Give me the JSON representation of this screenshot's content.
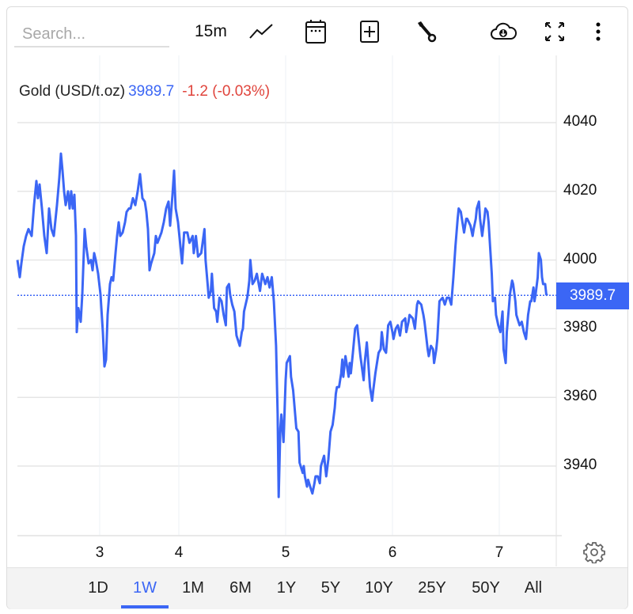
{
  "toolbar": {
    "search_placeholder": "Search...",
    "interval": "15m",
    "icons": [
      "line-chart-icon",
      "calendar-icon",
      "add-indicator-icon",
      "wrench-icon",
      "cloud-download-icon",
      "fullscreen-icon",
      "more-vertical-icon"
    ]
  },
  "legend": {
    "symbol": "Gold (USD/t.oz)",
    "price": "3989.7",
    "change": "-1.2 (-0.03%)"
  },
  "colors": {
    "line": "#3b66f5",
    "accent": "#3b66f5",
    "negative": "#e0443c"
  },
  "current_price_label": "3989.7",
  "ranges": {
    "items": [
      "1D",
      "1W",
      "1M",
      "6M",
      "1Y",
      "5Y",
      "10Y",
      "25Y",
      "50Y",
      "All"
    ],
    "selected": "1W"
  },
  "chart_data": {
    "type": "line",
    "y_ticks": [
      "4040",
      "4020",
      "4000",
      "3980",
      "3960",
      "3940"
    ],
    "x_ticks": [
      "3",
      "4",
      "5",
      "6",
      "7"
    ],
    "ylim": [
      3922,
      4055
    ],
    "grid": true,
    "last_value": 3989.7,
    "series": [
      {
        "points": [
          [
            1.96,
            4000
          ],
          [
            1.99,
            3995
          ],
          [
            2.01,
            3999
          ],
          [
            2.04,
            4004
          ],
          [
            2.07,
            4007
          ],
          [
            2.1,
            4009
          ],
          [
            2.14,
            4007
          ],
          [
            2.17,
            4016
          ],
          [
            2.2,
            4023
          ],
          [
            2.22,
            4018
          ],
          [
            2.24,
            4022
          ],
          [
            2.27,
            4015
          ],
          [
            2.3,
            4007
          ],
          [
            2.33,
            4002
          ],
          [
            2.36,
            4015
          ],
          [
            2.39,
            4009
          ],
          [
            2.42,
            4007
          ],
          [
            2.46,
            4016
          ],
          [
            2.49,
            4024
          ],
          [
            2.51,
            4031
          ],
          [
            2.53,
            4026
          ],
          [
            2.55,
            4020
          ],
          [
            2.57,
            4016
          ],
          [
            2.6,
            4020
          ],
          [
            2.62,
            4015
          ],
          [
            2.64,
            4020
          ],
          [
            2.66,
            4015
          ],
          [
            2.68,
            4019
          ],
          [
            2.7,
            4007
          ],
          [
            2.71,
            3979
          ],
          [
            2.73,
            3986
          ],
          [
            2.76,
            3982
          ],
          [
            2.78,
            3990
          ],
          [
            2.81,
            4009
          ],
          [
            2.83,
            4004
          ],
          [
            2.86,
            3999
          ],
          [
            2.89,
            4000
          ],
          [
            2.91,
            3997
          ],
          [
            2.93,
            4002
          ],
          [
            2.95,
            4000
          ],
          [
            2.98,
            3996
          ],
          [
            3.01,
            3990
          ],
          [
            3.04,
            3979
          ],
          [
            3.06,
            3969
          ],
          [
            3.08,
            3971
          ],
          [
            3.1,
            3984
          ],
          [
            3.13,
            3993
          ],
          [
            3.15,
            3995
          ],
          [
            3.17,
            3994
          ],
          [
            3.2,
            4002
          ],
          [
            3.22,
            4007
          ],
          [
            3.24,
            4011
          ],
          [
            3.26,
            4007
          ],
          [
            3.29,
            4008
          ],
          [
            3.32,
            4011
          ],
          [
            3.34,
            4014
          ],
          [
            3.37,
            4015
          ],
          [
            3.39,
            4015
          ],
          [
            3.42,
            4018
          ],
          [
            3.45,
            4016
          ],
          [
            3.48,
            4020
          ],
          [
            3.51,
            4025
          ],
          [
            3.54,
            4018
          ],
          [
            3.57,
            4017
          ],
          [
            3.59,
            4014
          ],
          [
            3.61,
            4009
          ],
          [
            3.63,
            3997
          ],
          [
            3.65,
            3999
          ],
          [
            3.69,
            4002
          ],
          [
            3.71,
            4007
          ],
          [
            3.73,
            4005
          ],
          [
            3.78,
            4008
          ],
          [
            3.81,
            4011
          ],
          [
            3.84,
            4015
          ],
          [
            3.87,
            4017
          ],
          [
            3.89,
            4010
          ],
          [
            3.92,
            4019
          ],
          [
            3.94,
            4026
          ],
          [
            3.96,
            4015
          ],
          [
            3.99,
            4011
          ],
          [
            4.015,
            4004
          ],
          [
            4.03,
            3999
          ],
          [
            4.05,
            4008
          ],
          [
            4.08,
            4008
          ],
          [
            4.1,
            4005
          ],
          [
            4.13,
            4007
          ],
          [
            4.14,
            4002
          ],
          [
            4.16,
            4007
          ],
          [
            4.18,
            4001
          ],
          [
            4.21,
            4002
          ],
          [
            4.24,
            4009
          ],
          [
            4.25,
            4000
          ],
          [
            4.27,
            3993
          ],
          [
            4.28,
            3989
          ],
          [
            4.3,
            3991
          ],
          [
            4.31,
            3996
          ],
          [
            4.33,
            3986
          ],
          [
            4.35,
            3985
          ],
          [
            4.36,
            3982
          ],
          [
            4.38,
            3989
          ],
          [
            4.4,
            3988
          ],
          [
            4.42,
            3984
          ],
          [
            4.44,
            3981
          ],
          [
            4.45,
            3992
          ],
          [
            4.47,
            3993
          ],
          [
            4.48,
            3990
          ],
          [
            4.5,
            3987
          ],
          [
            4.52,
            3985
          ],
          [
            4.54,
            3978
          ],
          [
            4.57,
            3975
          ],
          [
            4.59,
            3979
          ],
          [
            4.6,
            3980
          ],
          [
            4.61,
            3985
          ],
          [
            4.64,
            3989
          ],
          [
            4.645,
            3990
          ],
          [
            4.66,
            3994
          ],
          [
            4.67,
            4000
          ],
          [
            4.69,
            3993
          ],
          [
            4.71,
            3994
          ],
          [
            4.73,
            3996
          ],
          [
            4.76,
            3991
          ],
          [
            4.78,
            3996
          ],
          [
            4.81,
            3993
          ],
          [
            4.83,
            3995
          ],
          [
            4.85,
            3992
          ],
          [
            4.87,
            3995
          ],
          [
            4.89,
            3988
          ],
          [
            4.91,
            3975
          ],
          [
            4.925,
            3955
          ],
          [
            4.935,
            3931
          ],
          [
            4.95,
            3951
          ],
          [
            4.96,
            3955
          ],
          [
            4.98,
            3947
          ],
          [
            5.0,
            3965
          ],
          [
            5.01,
            3970
          ],
          [
            5.04,
            3972
          ],
          [
            5.05,
            3966
          ],
          [
            5.07,
            3962
          ],
          [
            5.1,
            3951
          ],
          [
            5.12,
            3950
          ],
          [
            5.13,
            3941
          ],
          [
            5.16,
            3938
          ],
          [
            5.17,
            3940
          ],
          [
            5.18,
            3937
          ],
          [
            5.2,
            3934
          ],
          [
            5.21,
            3936
          ],
          [
            5.24,
            3933
          ],
          [
            5.25,
            3932
          ],
          [
            5.27,
            3935
          ],
          [
            5.28,
            3937
          ],
          [
            5.3,
            3937
          ],
          [
            5.32,
            3935
          ],
          [
            5.33,
            3940
          ],
          [
            5.36,
            3943
          ],
          [
            5.38,
            3937
          ],
          [
            5.4,
            3942
          ],
          [
            5.42,
            3950
          ],
          [
            5.44,
            3952
          ],
          [
            5.46,
            3957
          ],
          [
            5.47,
            3961
          ],
          [
            5.48,
            3963
          ],
          [
            5.5,
            3963
          ],
          [
            5.52,
            3967
          ],
          [
            5.53,
            3971
          ],
          [
            5.54,
            3966
          ],
          [
            5.56,
            3972
          ],
          [
            5.59,
            3966
          ],
          [
            5.6,
            3970
          ],
          [
            5.61,
            3967
          ],
          [
            5.63,
            3973
          ],
          [
            5.65,
            3980
          ],
          [
            5.67,
            3981
          ],
          [
            5.7,
            3972
          ],
          [
            5.73,
            3965
          ],
          [
            5.74,
            3970
          ],
          [
            5.76,
            3976
          ],
          [
            5.77,
            3972
          ],
          [
            5.79,
            3963
          ],
          [
            5.81,
            3959
          ],
          [
            5.82,
            3962
          ],
          [
            5.84,
            3967
          ],
          [
            5.86,
            3971
          ],
          [
            5.87,
            3973
          ],
          [
            5.89,
            3974
          ],
          [
            5.9,
            3979
          ],
          [
            5.92,
            3974
          ],
          [
            5.94,
            3973
          ],
          [
            5.96,
            3981
          ],
          [
            5.98,
            3982
          ],
          [
            6.0,
            3979
          ],
          [
            6.01,
            3977
          ],
          [
            6.03,
            3980
          ],
          [
            6.05,
            3981
          ],
          [
            6.07,
            3978
          ],
          [
            6.09,
            3982
          ],
          [
            6.12,
            3983
          ],
          [
            6.13,
            3979
          ],
          [
            6.15,
            3982
          ],
          [
            6.16,
            3984
          ],
          [
            6.19,
            3983
          ],
          [
            6.21,
            3980
          ],
          [
            6.23,
            3987
          ],
          [
            6.24,
            3988
          ],
          [
            6.27,
            3987
          ],
          [
            6.29,
            3984
          ],
          [
            6.3,
            3982
          ],
          [
            6.33,
            3974
          ],
          [
            6.34,
            3972
          ],
          [
            6.36,
            3975
          ],
          [
            6.38,
            3974
          ],
          [
            6.39,
            3970
          ],
          [
            6.41,
            3974
          ],
          [
            6.42,
            3977
          ],
          [
            6.44,
            3988
          ],
          [
            6.47,
            3989
          ],
          [
            6.49,
            3987
          ],
          [
            6.51,
            3989
          ],
          [
            6.53,
            3989
          ],
          [
            6.55,
            3987
          ],
          [
            6.57,
            3995
          ],
          [
            6.59,
            4004
          ],
          [
            6.61,
            4012
          ],
          [
            6.62,
            4015
          ],
          [
            6.64,
            4014
          ],
          [
            6.66,
            4010
          ],
          [
            6.67,
            4008
          ],
          [
            6.69,
            4012
          ],
          [
            6.7,
            4012
          ],
          [
            6.73,
            4010
          ],
          [
            6.75,
            4007
          ],
          [
            6.76,
            4009
          ],
          [
            6.78,
            4012
          ],
          [
            6.79,
            4015
          ],
          [
            6.81,
            4017
          ],
          [
            6.82,
            4012
          ],
          [
            6.84,
            4007
          ],
          [
            6.86,
            4012
          ],
          [
            6.87,
            4015
          ],
          [
            6.89,
            4014
          ],
          [
            6.9,
            4011
          ],
          [
            6.93,
            3996
          ],
          [
            6.94,
            3988
          ],
          [
            6.96,
            3989
          ],
          [
            6.97,
            3984
          ],
          [
            6.99,
            3981
          ],
          [
            7.01,
            3979
          ],
          [
            7.03,
            3985
          ],
          [
            7.04,
            3974
          ],
          [
            7.06,
            3970
          ],
          [
            7.07,
            3979
          ],
          [
            7.09,
            3986
          ],
          [
            7.1,
            3990
          ],
          [
            7.12,
            3994
          ],
          [
            7.13,
            3993
          ],
          [
            7.15,
            3988
          ],
          [
            7.16,
            3984
          ],
          [
            7.18,
            3982
          ],
          [
            7.19,
            3981
          ],
          [
            7.21,
            3982
          ],
          [
            7.23,
            3979
          ],
          [
            7.25,
            3977
          ],
          [
            7.27,
            3984
          ],
          [
            7.29,
            3988
          ],
          [
            7.3,
            3988
          ],
          [
            7.32,
            3992
          ],
          [
            7.33,
            3988
          ],
          [
            7.34,
            3990
          ],
          [
            7.36,
            3995
          ],
          [
            7.37,
            4002
          ],
          [
            7.39,
            4000
          ],
          [
            7.4,
            3995
          ],
          [
            7.41,
            3993
          ],
          [
            7.43,
            3993
          ],
          [
            7.44,
            3990
          ],
          [
            7.45,
            3989.7
          ]
        ]
      }
    ]
  }
}
